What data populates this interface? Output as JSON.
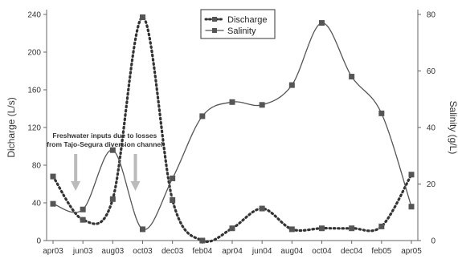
{
  "chart_data": {
    "type": "line",
    "categories": [
      "apr03",
      "jun03",
      "aug03",
      "oct03",
      "dec03",
      "feb04",
      "apr04",
      "jun04",
      "aug04",
      "oct04",
      "dec04",
      "feb05",
      "apr05"
    ],
    "series": [
      {
        "name": "Discharge",
        "axis": "left",
        "style": "dotted",
        "color": "#333333",
        "values": [
          68,
          22,
          44,
          237,
          43,
          0,
          13,
          34,
          12,
          13,
          13,
          15,
          70
        ]
      },
      {
        "name": "Salinity",
        "axis": "right",
        "style": "solid",
        "color": "#555555",
        "values": [
          13,
          11,
          32,
          4,
          22,
          44,
          49,
          48,
          55,
          77,
          58,
          45,
          12
        ]
      }
    ],
    "left_axis": {
      "label": "Dicharge (L/s)",
      "ylim": [
        0,
        240
      ],
      "ticks": [
        "0",
        "40",
        "80",
        "120",
        "160",
        "200",
        "240"
      ]
    },
    "right_axis": {
      "label": "Salinity (g/L)",
      "ylim": [
        0,
        80
      ],
      "ticks": [
        "0",
        "20",
        "40",
        "60",
        "80"
      ]
    },
    "legend": {
      "placement": "top-center",
      "entries": [
        "Discharge",
        "Salinity"
      ]
    },
    "annotation": {
      "lines": [
        "Freshwater inputs due to losses",
        "from Tajo-Segura diversion channel"
      ],
      "arrow_categories": [
        "jun03",
        "oct03"
      ]
    },
    "grid": false
  }
}
